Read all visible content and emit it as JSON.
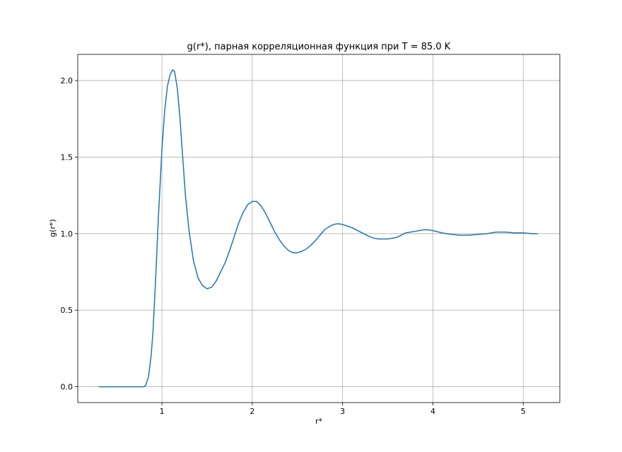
{
  "chart_data": {
    "type": "line",
    "title": "g(r*), парная корреляционная функция при T = 85.0 K",
    "x_label": "r*",
    "y_label": "g(r*)",
    "x": [
      0.3,
      0.5,
      0.7,
      0.8,
      0.82,
      0.85,
      0.88,
      0.9,
      0.93,
      0.96,
      1.0,
      1.03,
      1.06,
      1.09,
      1.12,
      1.14,
      1.17,
      1.2,
      1.23,
      1.26,
      1.3,
      1.35,
      1.4,
      1.45,
      1.5,
      1.55,
      1.6,
      1.65,
      1.7,
      1.75,
      1.8,
      1.85,
      1.9,
      1.95,
      2.0,
      2.05,
      2.1,
      2.15,
      2.2,
      2.25,
      2.3,
      2.35,
      2.4,
      2.45,
      2.5,
      2.55,
      2.6,
      2.65,
      2.7,
      2.75,
      2.8,
      2.85,
      2.9,
      2.95,
      3.0,
      3.05,
      3.1,
      3.15,
      3.2,
      3.25,
      3.3,
      3.35,
      3.4,
      3.5,
      3.6,
      3.65,
      3.7,
      3.8,
      3.9,
      3.95,
      4.0,
      4.1,
      4.2,
      4.3,
      4.4,
      4.5,
      4.6,
      4.7,
      4.8,
      4.9,
      5.0,
      5.1,
      5.16
    ],
    "values": [
      0,
      0,
      0,
      0,
      0.01,
      0.06,
      0.2,
      0.35,
      0.7,
      1.1,
      1.55,
      1.8,
      1.96,
      2.04,
      2.07,
      2.06,
      1.95,
      1.75,
      1.5,
      1.25,
      1.02,
      0.82,
      0.71,
      0.66,
      0.64,
      0.65,
      0.69,
      0.75,
      0.81,
      0.89,
      0.98,
      1.07,
      1.14,
      1.19,
      1.21,
      1.21,
      1.18,
      1.13,
      1.07,
      1.01,
      0.96,
      0.92,
      0.89,
      0.875,
      0.875,
      0.885,
      0.9,
      0.925,
      0.955,
      0.99,
      1.025,
      1.045,
      1.06,
      1.065,
      1.06,
      1.05,
      1.04,
      1.025,
      1.01,
      0.995,
      0.98,
      0.97,
      0.965,
      0.965,
      0.975,
      0.99,
      1.005,
      1.015,
      1.025,
      1.025,
      1.02,
      1.005,
      0.995,
      0.99,
      0.99,
      0.995,
      1.0,
      1.01,
      1.01,
      1.005,
      1.005,
      1.0,
      1.0
    ],
    "color": "#1f77b4",
    "xlim": [
      0.068,
      5.405
    ],
    "ylim": [
      -0.1035,
      2.171
    ],
    "xticks": [
      1,
      2,
      3,
      4,
      5
    ],
    "yticks": [
      {
        "value": 0,
        "label": "0.0"
      },
      0.5,
      {
        "value": 1,
        "label": "1.0"
      },
      1.5,
      {
        "value": 2,
        "label": "2.0"
      }
    ],
    "grid": true
  }
}
